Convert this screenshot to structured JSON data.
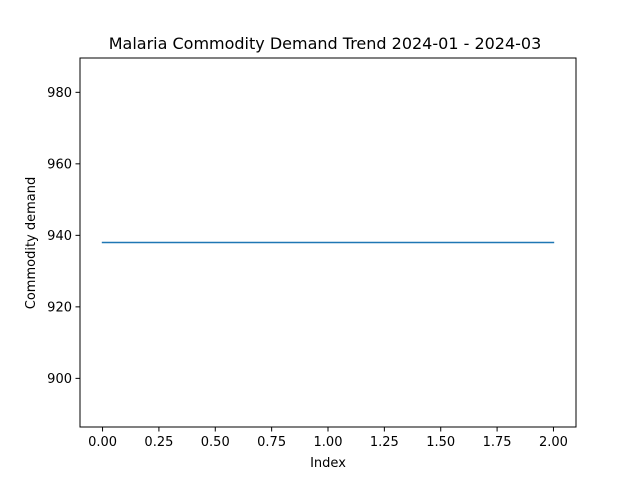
{
  "chart_data": {
    "type": "line",
    "title": "Malaria Commodity Demand Trend 2024-01 - 2024-03",
    "xlabel": "Index",
    "ylabel": "Commodity demand",
    "x": [
      0,
      1,
      2
    ],
    "series": [
      {
        "values": [
          938,
          938,
          938
        ],
        "color": "#1f77b4"
      }
    ],
    "xlim": [
      -0.1,
      2.1
    ],
    "ylim": [
      886.4,
      989.6
    ],
    "xticks": [
      0.0,
      0.25,
      0.5,
      0.75,
      1.0,
      1.25,
      1.5,
      1.75,
      2.0
    ],
    "xtick_labels": [
      "0.00",
      "0.25",
      "0.50",
      "0.75",
      "1.00",
      "1.25",
      "1.50",
      "1.75",
      "2.00"
    ],
    "yticks": [
      900,
      920,
      940,
      960,
      980
    ],
    "ytick_labels": [
      "900",
      "920",
      "940",
      "960",
      "980"
    ],
    "grid": false,
    "legend": "none"
  }
}
